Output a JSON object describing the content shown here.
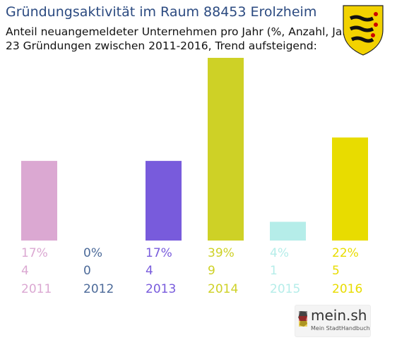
{
  "title": "Gründungsaktivität im Raum 88453 Erolzheim",
  "subtitle_line1": "Anteil neuangemeldeter Unternehmen pro Jahr (%, Anzahl, Jahr)",
  "subtitle_line2": "23 Gründungen zwischen 2011-2016, Trend aufsteigend:",
  "logo": {
    "name": "mein.sh",
    "tagline": "Mein StadtHandbuch"
  },
  "crest_icon": "baden-wuerttemberg-coat-of-arms",
  "chart_data": {
    "type": "bar",
    "categories": [
      "2011",
      "2012",
      "2013",
      "2014",
      "2015",
      "2016"
    ],
    "values": [
      17,
      0,
      17,
      39,
      4,
      22
    ],
    "counts": [
      4,
      0,
      4,
      9,
      1,
      5
    ],
    "percent_labels": [
      "17%",
      "0%",
      "17%",
      "39%",
      "4%",
      "22%"
    ],
    "colors": [
      "#dba8d2",
      "#4c6a99",
      "#785bdc",
      "#ced126",
      "#b5ede9",
      "#e8dc00"
    ],
    "ylim": [
      0,
      39
    ],
    "grid": false,
    "xlabel": "",
    "ylabel": ""
  }
}
